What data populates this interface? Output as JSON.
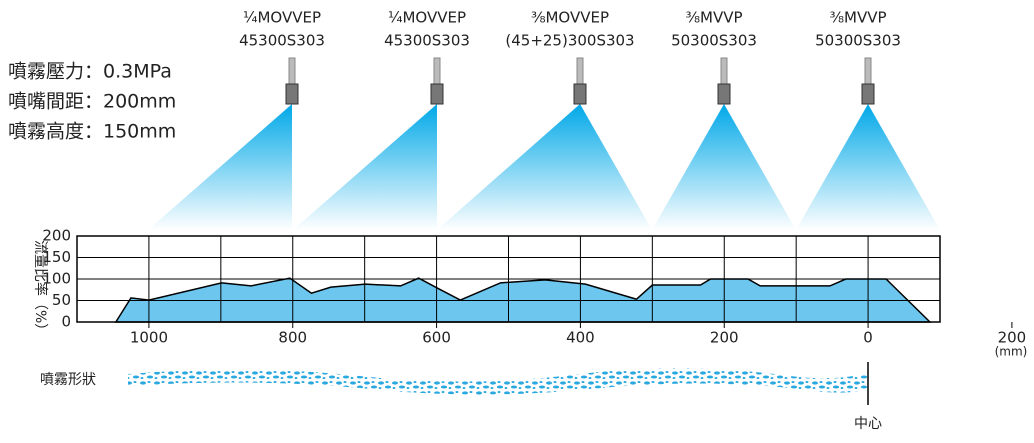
{
  "chart_data": {
    "type": "area",
    "conditions": [
      "噴霧壓力：0.3MPa",
      "噴嘴間距：200mm",
      "噴霧高度：150mm"
    ],
    "nozzles": [
      {
        "line1": "¼MOVVEP",
        "line2": "45300S303"
      },
      {
        "line1": "¼MOVVEP",
        "line2": "45300S303"
      },
      {
        "line1": "⅜MOVVEP",
        "line2": "(45+25)300S303"
      },
      {
        "line1": "⅜MVVP",
        "line2": "50300S303"
      },
      {
        "line1": "⅜MVVP",
        "line2": "50300S303"
      }
    ],
    "y_label": "流量比率（%）",
    "x_unit": "(mm)",
    "spray_label": "噴霧形狀",
    "center_label": "中心",
    "color": "#6cc6ee",
    "x": [
      1046,
      1025,
      1000,
      899,
      858,
      804,
      774,
      747,
      699,
      650,
      625,
      599,
      567,
      511,
      449,
      393,
      322,
      300,
      233,
      219,
      167,
      150,
      53,
      31,
      -25,
      -86
    ],
    "values": [
      0,
      56,
      51,
      91,
      84,
      102,
      67,
      81,
      88,
      84,
      102,
      79,
      51,
      91,
      98,
      88,
      53,
      86,
      86,
      100,
      100,
      84,
      84,
      100,
      100,
      0
    ],
    "xlim": [
      1100,
      -100
    ],
    "xticks": [
      1000,
      800,
      600,
      400,
      200,
      0,
      {
        "value": -200,
        "label": "200"
      }
    ],
    "x_gridlines": [
      1000,
      900,
      800,
      700,
      600,
      500,
      400,
      300,
      200,
      100,
      0
    ],
    "ylim": [
      0,
      200
    ],
    "yticks": [
      0,
      50,
      100,
      150,
      200
    ],
    "grid": true
  }
}
